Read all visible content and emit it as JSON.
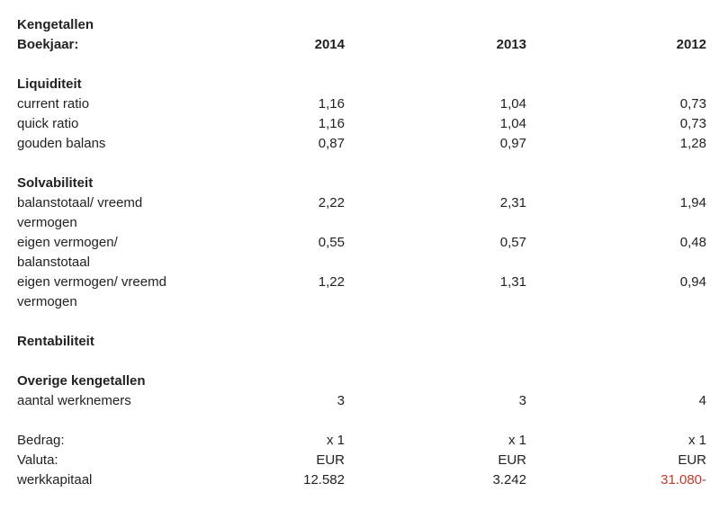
{
  "title": "Kengetallen",
  "header": {
    "label": "Boekjaar:",
    "years": [
      "2014",
      "2013",
      "2012"
    ]
  },
  "sections": [
    {
      "title": "Liquiditeit",
      "rows": [
        {
          "label": "current ratio",
          "values": [
            "1,16",
            "1,04",
            "0,73"
          ]
        },
        {
          "label": "quick ratio",
          "values": [
            "1,16",
            "1,04",
            "0,73"
          ]
        },
        {
          "label": "gouden balans",
          "values": [
            "0,87",
            "0,97",
            "1,28"
          ]
        }
      ]
    },
    {
      "title": "Solvabiliteit",
      "rows": [
        {
          "label": "balanstotaal/ vreemd vermogen",
          "values": [
            "2,22",
            "2,31",
            "1,94"
          ]
        },
        {
          "label": "eigen vermogen/ balanstotaal",
          "values": [
            "0,55",
            "0,57",
            "0,48"
          ]
        },
        {
          "label": "eigen vermogen/ vreemd vermogen",
          "values": [
            "1,22",
            "1,31",
            "0,94"
          ]
        }
      ]
    },
    {
      "title": "Rentabiliteit",
      "rows": []
    },
    {
      "title": "Overige kengetallen",
      "rows": [
        {
          "label": "aantal werknemers",
          "values": [
            "3",
            "3",
            "4"
          ]
        }
      ]
    }
  ],
  "footer": {
    "rows": [
      {
        "label": "Bedrag:",
        "values": [
          "x 1",
          "x 1",
          "x 1"
        ]
      },
      {
        "label": "Valuta:",
        "values": [
          "EUR",
          "EUR",
          "EUR"
        ]
      },
      {
        "label": "werkkapitaal",
        "values": [
          "12.582",
          "3.242",
          "31.080-"
        ]
      }
    ]
  }
}
